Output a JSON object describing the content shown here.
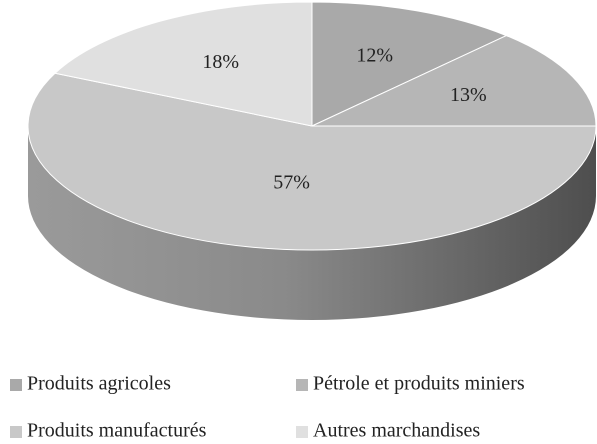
{
  "chart_data": {
    "type": "pie",
    "categories": [
      "Produits agricoles",
      "Pétrole et produits miniers",
      "Produits manufacturés",
      "Autres marchandises"
    ],
    "values": [
      12,
      13,
      57,
      18
    ],
    "value_labels": [
      "12%",
      "13%",
      "57%",
      "18%"
    ],
    "colors": [
      "#a9a9a9",
      "#b6b6b6",
      "#c8c8c8",
      "#e0e0e0"
    ],
    "legend": "bottom"
  }
}
